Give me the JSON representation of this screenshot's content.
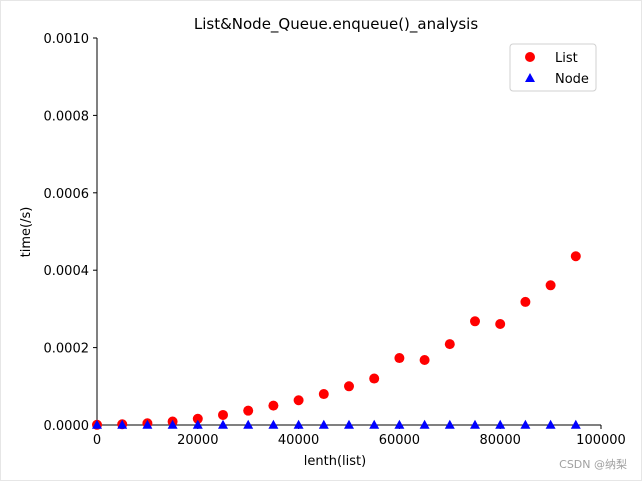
{
  "chart_data": {
    "type": "scatter",
    "title": "List&Node_Queue.enqueue()_analysis",
    "xlabel": "lenth(list)",
    "ylabel": "time(/s)",
    "xlim": [
      0,
      100000
    ],
    "ylim": [
      0,
      0.001
    ],
    "xticks": [
      0,
      20000,
      40000,
      60000,
      80000,
      100000
    ],
    "xtick_labels": [
      "0",
      "20000",
      "40000",
      "60000",
      "80000",
      "100000"
    ],
    "yticks": [
      0,
      0.0002,
      0.0004,
      0.0006,
      0.0008,
      0.001
    ],
    "ytick_labels": [
      "0.0000",
      "0.0002",
      "0.0004",
      "0.0006",
      "0.0008",
      "0.0010"
    ],
    "grid": false,
    "legend_position": "top-right",
    "series": [
      {
        "name": "List",
        "marker": "circle",
        "color": "#ff0000",
        "x": [
          0,
          5000,
          10000,
          15000,
          20000,
          25000,
          30000,
          35000,
          40000,
          45000,
          50000,
          55000,
          60000,
          65000,
          70000,
          75000,
          80000,
          85000,
          90000,
          95000
        ],
        "y": [
          5e-07,
          2e-06,
          4.5e-06,
          9e-06,
          1.6e-05,
          2.6e-05,
          3.7e-05,
          5e-05,
          6.4e-05,
          8e-05,
          0.0001,
          0.00012,
          0.000173,
          0.000168,
          0.000209,
          0.000268,
          0.000261,
          0.000318,
          0.000361,
          0.000436
        ]
      },
      {
        "name": "Node",
        "marker": "triangle",
        "color": "#0000ff",
        "x": [
          0,
          5000,
          10000,
          15000,
          20000,
          25000,
          30000,
          35000,
          40000,
          45000,
          50000,
          55000,
          60000,
          65000,
          70000,
          75000,
          80000,
          85000,
          90000,
          95000
        ],
        "y": [
          6e-07,
          6e-07,
          6e-07,
          6e-07,
          6e-07,
          6e-07,
          6e-07,
          6e-07,
          6e-07,
          6e-07,
          6e-07,
          6e-07,
          6e-07,
          6e-07,
          6e-07,
          6e-07,
          6e-07,
          6e-07,
          6e-07,
          6e-07
        ]
      }
    ]
  },
  "watermark": "CSDN @纳梨"
}
